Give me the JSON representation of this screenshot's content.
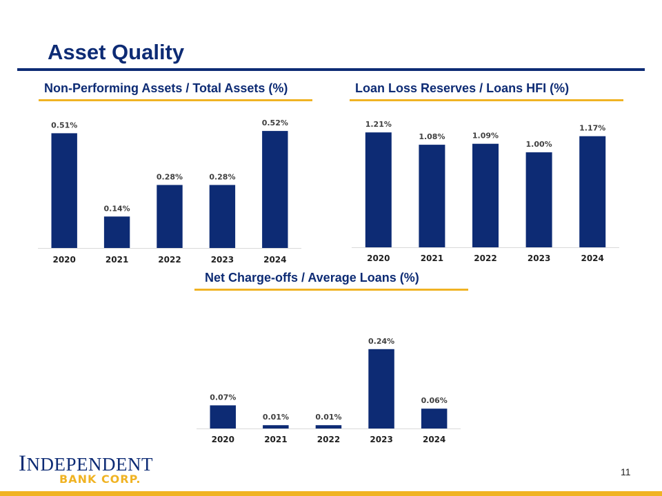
{
  "page": {
    "title": "Asset Quality",
    "page_number": "11",
    "logo": {
      "line1_initial": "I",
      "line1_rest": "NDEPENDENT",
      "line2": "BANK CORP."
    }
  },
  "colors": {
    "navy": "#0d2b74",
    "gold": "#f0b323"
  },
  "chart_data": [
    {
      "type": "bar",
      "title": "Non-Performing Assets / Total Assets (%)",
      "categories": [
        "2020",
        "2021",
        "2022",
        "2023",
        "2024"
      ],
      "values": [
        0.51,
        0.14,
        0.28,
        0.28,
        0.52
      ],
      "labels": [
        "0.51%",
        "0.14%",
        "0.28%",
        "0.28%",
        "0.52%"
      ],
      "ylim": [
        0,
        0.6
      ],
      "xlabel": "",
      "ylabel": ""
    },
    {
      "type": "bar",
      "title": "Loan Loss Reserves / Loans HFI (%)",
      "categories": [
        "2020",
        "2021",
        "2022",
        "2023",
        "2024"
      ],
      "values": [
        1.21,
        1.08,
        1.09,
        1.0,
        1.17
      ],
      "labels": [
        "1.21%",
        "1.08%",
        "1.09%",
        "1.00%",
        "1.17%"
      ],
      "ylim": [
        0,
        1.4
      ],
      "xlabel": "",
      "ylabel": ""
    },
    {
      "type": "bar",
      "title": "Net Charge-offs / Average Loans (%)",
      "categories": [
        "2020",
        "2021",
        "2022",
        "2023",
        "2024"
      ],
      "values": [
        0.07,
        0.01,
        0.01,
        0.24,
        0.06
      ],
      "labels": [
        "0.07%",
        "0.01%",
        "0.01%",
        "0.24%",
        "0.06%"
      ],
      "ylim": [
        0,
        0.3
      ],
      "xlabel": "",
      "ylabel": ""
    }
  ]
}
